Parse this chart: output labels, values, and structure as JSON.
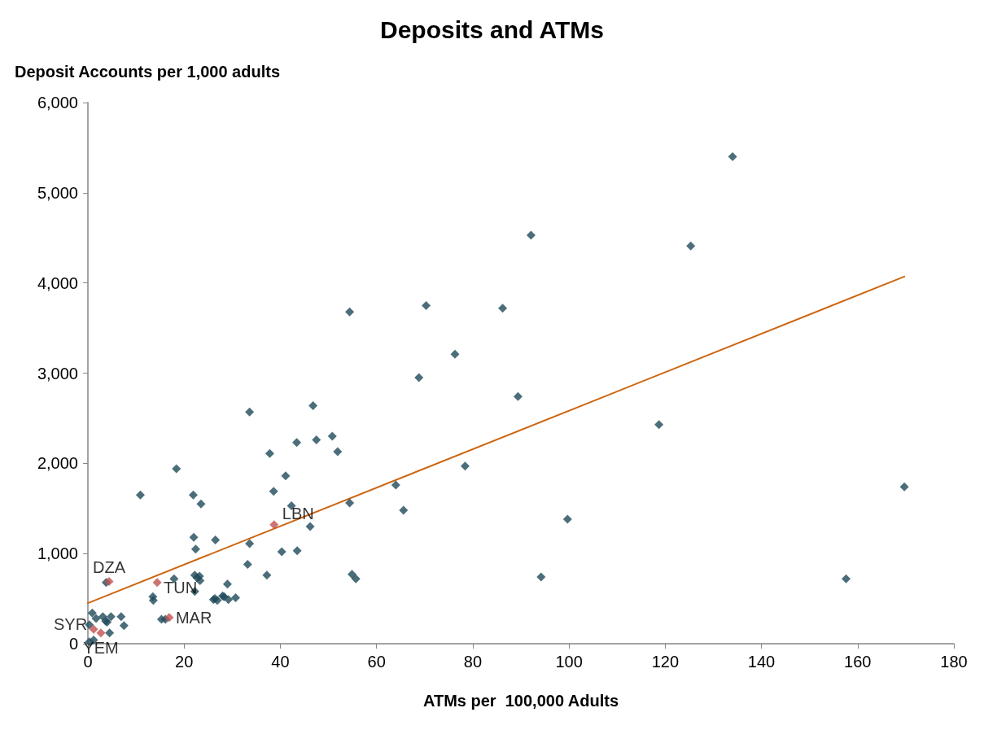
{
  "chart_data": {
    "type": "scatter",
    "title": "Deposits and ATMs",
    "xlabel": "ATMs per  100,000 Adults",
    "ylabel": "Deposit Accounts per 1,000 adults",
    "marker": "diamond",
    "grid": false,
    "xlim": [
      0,
      180
    ],
    "xticks": [
      0,
      20,
      40,
      60,
      80,
      100,
      120,
      140,
      160,
      180
    ],
    "ylim": [
      0,
      6000
    ],
    "yticks": [
      {
        "value": 0,
        "label": "0"
      },
      {
        "value": 1000,
        "label": "1,000"
      },
      {
        "value": 2000,
        "label": "2,000"
      },
      {
        "value": 3000,
        "label": "3,000"
      },
      {
        "value": 4000,
        "label": "4,000"
      },
      {
        "value": 5000,
        "label": "5,000"
      },
      {
        "value": 6000,
        "label": "6,000"
      }
    ],
    "series": [
      {
        "color": "#1f4a5a",
        "x": [
          134.0,
          92.1,
          125.3,
          54.4,
          70.3,
          86.2,
          76.3,
          68.8,
          89.4,
          118.7,
          50.8,
          51.9,
          78.4,
          64.0,
          54.4,
          65.6,
          99.7,
          169.7,
          54.9,
          55.7,
          94.2,
          157.6,
          33.6,
          46.8,
          43.4,
          47.5,
          37.8,
          18.4,
          41.1,
          38.6,
          42.3,
          10.9,
          21.9,
          23.5,
          46.2,
          22.0,
          26.5,
          33.6,
          40.3,
          43.5,
          22.4,
          33.2,
          37.2,
          17.9,
          22.2,
          23.3,
          23.2,
          29.0,
          13.5,
          26.4,
          28.3,
          30.7,
          3.8,
          15.3,
          16.1,
          13.6,
          22.7,
          22.2,
          26.1,
          26.9,
          28.0,
          29.2,
          0.9,
          1.7,
          0.3,
          4.0,
          4.8,
          6.9,
          7.5,
          4.5,
          0.3,
          1.2,
          3.1,
          3.7
        ],
        "values": [
          5400,
          4530,
          4410,
          3680,
          3750,
          3720,
          3210,
          2950,
          2740,
          2430,
          2300,
          2130,
          1970,
          1760,
          1560,
          1480,
          1380,
          1740,
          770,
          720,
          740,
          720,
          2570,
          2640,
          2230,
          2260,
          2110,
          1940,
          1860,
          1690,
          1530,
          1650,
          1650,
          1550,
          1300,
          1180,
          1150,
          1110,
          1020,
          1030,
          1050,
          880,
          760,
          720,
          760,
          700,
          750,
          660,
          520,
          500,
          520,
          510,
          680,
          270,
          270,
          480,
          730,
          580,
          490,
          480,
          530,
          490,
          340,
          280,
          210,
          240,
          300,
          300,
          200,
          120,
          20,
          40,
          300,
          250
        ]
      },
      {
        "color": "#c0504d",
        "x": [
          4.4,
          14.4,
          16.9,
          38.7,
          1.2,
          2.7
        ],
        "values": [
          690,
          680,
          290,
          1320,
          160,
          120
        ]
      },
      {
        "type": "line",
        "color": "#cc6611",
        "marker": "none",
        "x": [
          0,
          169.7
        ],
        "values": [
          450,
          4070
        ]
      }
    ],
    "annotations": [
      {
        "text": "DZA",
        "x": 4.4,
        "y": 690
      },
      {
        "text": "TUN",
        "x": 14.4,
        "y": 680
      },
      {
        "text": "MAR",
        "x": 16.9,
        "y": 290
      },
      {
        "text": "LBN",
        "x": 38.7,
        "y": 1320
      },
      {
        "text": "SYR",
        "x": 1.2,
        "y": 160
      },
      {
        "text": "YEM",
        "x": 2.7,
        "y": 120
      }
    ]
  }
}
